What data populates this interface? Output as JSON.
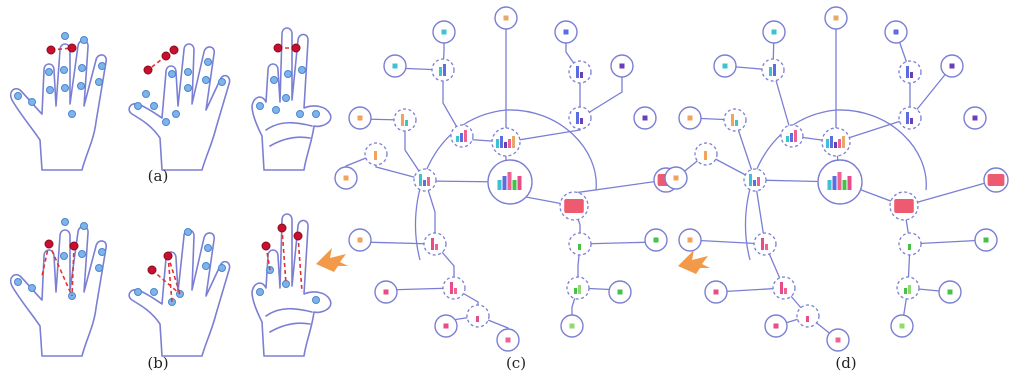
{
  "panels": {
    "a": "(a)",
    "b": "(b)",
    "c": "(c)",
    "d": "(d)"
  },
  "colors": {
    "outline": "#7b7fd4",
    "joint_blue": "#7fb4ea",
    "joint_red": "#c8102e",
    "dash_red": "#e0332f",
    "arrow": "#f2994a",
    "glyph_palette": [
      "#3ec1d3",
      "#5b6ee1",
      "#6a3fb5",
      "#f3a25b",
      "#e6a96b",
      "#e84a8a",
      "#f06292",
      "#45c14a",
      "#8fdc6d",
      "#ee5a6f"
    ]
  },
  "icons": [
    "hand-outline-icon",
    "joint-dot-icon",
    "arrow-icon"
  ]
}
